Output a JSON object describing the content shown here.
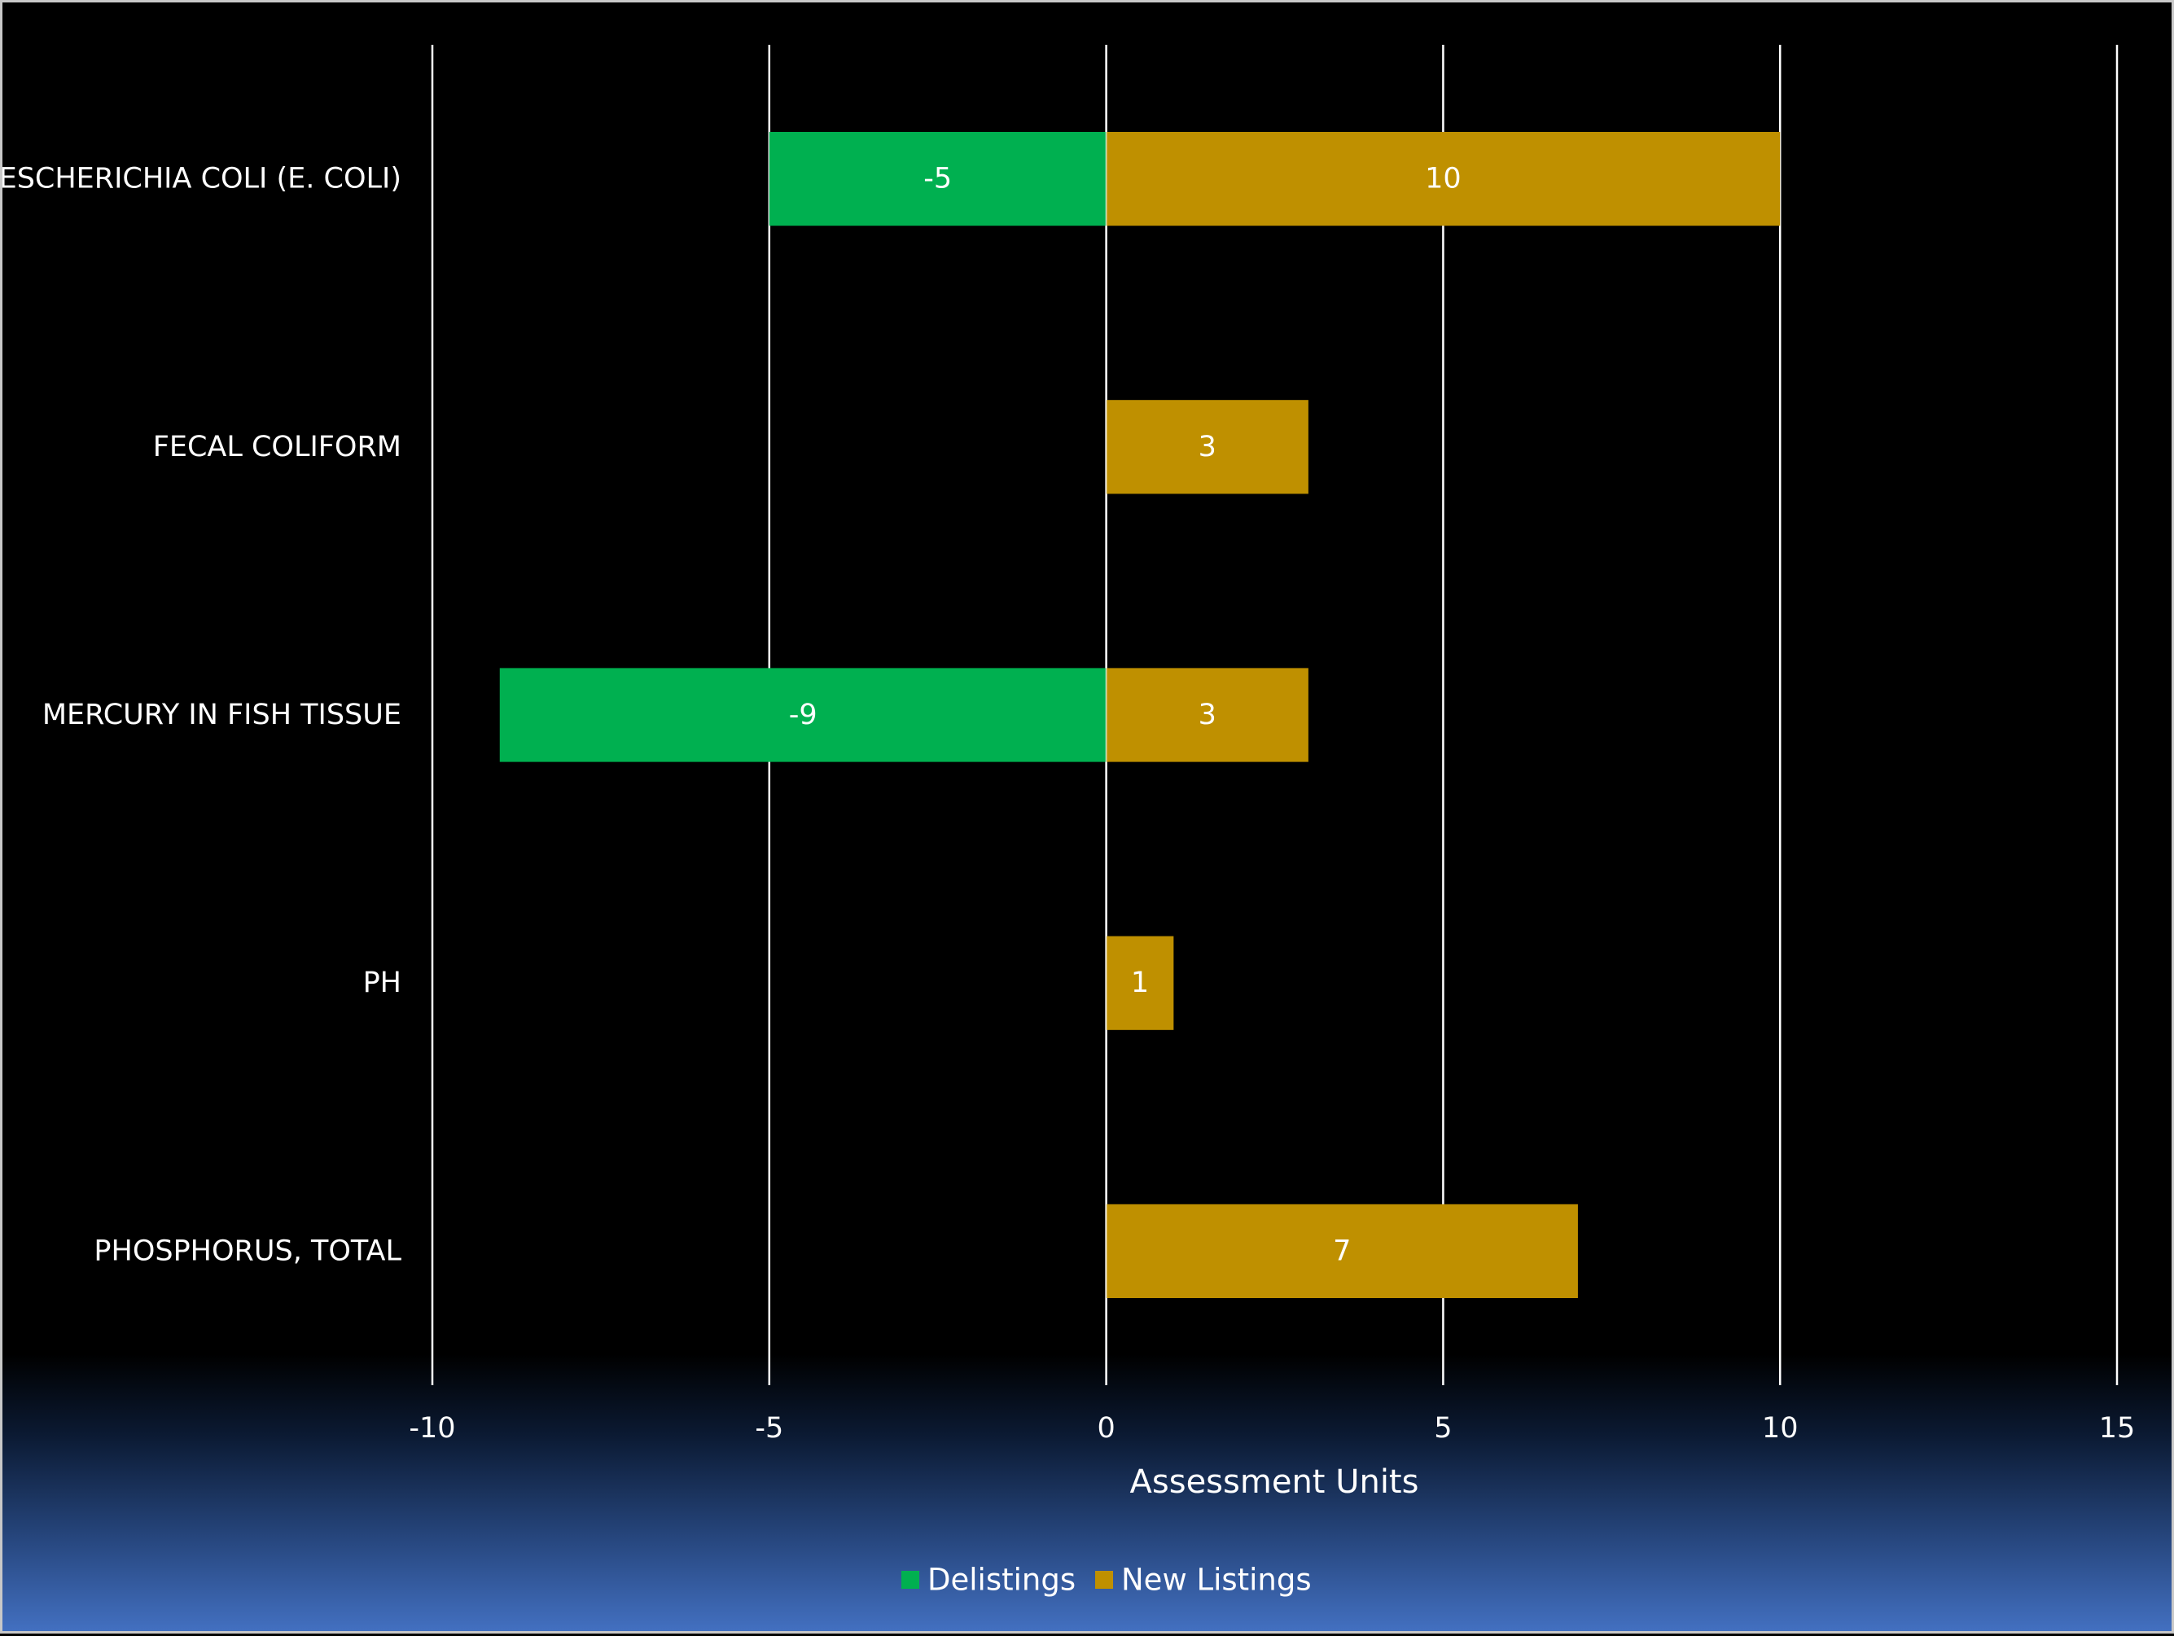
{
  "chart_data": {
    "type": "bar",
    "orientation": "horizontal",
    "stacked": true,
    "categories": [
      "ESCHERICHIA COLI (E. COLI)",
      "FECAL COLIFORM",
      "MERCURY IN FISH TISSUE",
      "PH",
      "PHOSPHORUS, TOTAL"
    ],
    "series": [
      {
        "name": "Delistings",
        "color": "#00b050",
        "values": [
          -5,
          null,
          -9,
          null,
          null
        ]
      },
      {
        "name": "New Listings",
        "color": "#bf9000",
        "values": [
          10,
          3,
          3,
          1,
          7
        ]
      }
    ],
    "xlabel": "Assessment Units",
    "xlim": [
      -10,
      15
    ],
    "xticks": [
      -10,
      -5,
      0,
      5,
      10,
      15
    ],
    "xtick_labels": [
      "-10",
      "-5",
      "0",
      "5",
      "10",
      "15"
    ],
    "grid": true,
    "legend_position": "bottom",
    "data_labels": true,
    "colors": {
      "background": "#000000",
      "gradient_bottom": "#4472c4",
      "gridline": "#ffffff",
      "text": "#ffffff"
    }
  }
}
